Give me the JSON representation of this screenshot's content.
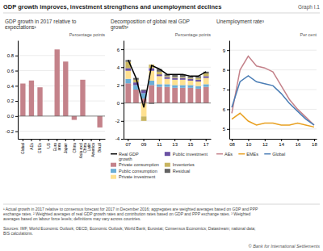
{
  "title": "GDP growth improves, investment strengthens and unemployment declines",
  "subtitle": "Graph I.1",
  "annotations": [
    "¹ Actual growth in 2017 relative to consensus forecast for 2017 in December 2016; aggregates are weighted averages based on GDP and PPP\nexchange rates.  ² Weighted averages of real GDP growth rates and contribution rates based on GDP and PPP exchange rates.  ³ Weighted\naverages based on labour force levels; definitions may vary across countries.\n\nSources: IMF, World Economic Outlook; OECD, Economic Outlook; World Bank; Eurostat; Consensus Economics; Datastream; national data;\nBIS calculations.",
    "© Bank for International Settlements"
  ],
  "chart_data": [
    {
      "type": "bar",
      "title": "GDP growth in 2017 relative to\nexpectations¹",
      "ylabel": "Percentage points",
      "categories": [
        "Global",
        "AEs",
        "EMEs",
        "US",
        "Euro\narea",
        "Japan",
        "China",
        "Asia excl\nChina",
        "Latin\nAmerica",
        "Brazil"
      ],
      "values": [
        0.43,
        0.47,
        0.38,
        0.0,
        0.88,
        0.72,
        -0.05,
        0.48,
        0.0,
        -0.15
      ],
      "color": "#c4828a",
      "ylim": [
        -0.3,
        1.0
      ],
      "yticks": [
        -0.2,
        {
          "value": 0.0,
          "label": "0.0"
        },
        0.2,
        0.4,
        0.6,
        0.8
      ],
      "grid": true
    },
    {
      "type": "bar",
      "stacked": true,
      "title": "Decomposition of global real GDP\ngrowth²",
      "ylabel": "Percentage points",
      "categories": [
        "07",
        null,
        "09",
        null,
        "11",
        null,
        "13",
        null,
        "15",
        null,
        "17"
      ],
      "series": [
        {
          "name": "Real GDP\ngrowth",
          "type": "line",
          "color": "black",
          "values": [
            4.8,
            2.8,
            -0.5,
            4.2,
            3.8,
            3.2,
            3.2,
            3.2,
            3.0,
            3.0,
            3.5
          ]
        },
        {
          "name": "Private consumption",
          "color": "#c4828a",
          "values": [
            2.2,
            1.5,
            0.5,
            2.0,
            1.8,
            1.8,
            1.7,
            1.7,
            1.7,
            1.6,
            1.8
          ]
        },
        {
          "name": "Public consumption",
          "color": "#6baed6",
          "values": [
            0.5,
            0.5,
            0.6,
            0.5,
            0.3,
            0.3,
            0.3,
            0.3,
            0.3,
            0.3,
            0.3
          ]
        },
        {
          "name": "Private investment",
          "color": "#fee090",
          "values": [
            0.9,
            0.0,
            -1.5,
            1.1,
            0.9,
            0.6,
            0.6,
            0.6,
            0.5,
            0.5,
            0.7
          ]
        },
        {
          "name": "Public investment",
          "color": "#6a51a3",
          "values": [
            0.3,
            0.3,
            0.3,
            0.3,
            0.2,
            0.2,
            0.2,
            0.2,
            0.2,
            0.2,
            0.2
          ]
        },
        {
          "name": "Inventories",
          "color": "#c8b560",
          "values": [
            0.7,
            0.3,
            -0.5,
            0.4,
            0.3,
            0.1,
            0.1,
            0.1,
            0.1,
            0.2,
            0.3
          ]
        },
        {
          "name": "Residual",
          "color": "#636363",
          "values": [
            0.2,
            0.2,
            0.1,
            -0.1,
            0.3,
            0.2,
            0.3,
            0.3,
            0.2,
            0.2,
            0.2
          ]
        }
      ],
      "ylim": [
        -4,
        7
      ],
      "yticks": [
        -4,
        -2,
        0,
        2,
        4,
        6
      ],
      "grid": true,
      "legend": "bottom"
    },
    {
      "type": "line",
      "title": "Unemployment rate³",
      "ylabel": "Per cent",
      "categories": [
        "08",
        null,
        "10",
        null,
        "12",
        null,
        "14",
        null,
        "16",
        null,
        "18"
      ],
      "series": [
        {
          "name": "AEs",
          "color": "#c4828a",
          "values": [
            5.8,
            8.0,
            8.7,
            8.2,
            8.1,
            7.9,
            7.2,
            6.5,
            6.0,
            5.6,
            5.2
          ]
        },
        {
          "name": "EMEs",
          "color": "#e8a020",
          "values": [
            5.5,
            5.8,
            5.4,
            5.2,
            5.3,
            5.3,
            5.2,
            5.2,
            5.3,
            5.2,
            5.1
          ]
        },
        {
          "name": "Global",
          "color": "#4a7db5",
          "values": [
            6.1,
            7.4,
            7.7,
            7.4,
            7.3,
            7.2,
            6.8,
            6.3,
            5.9,
            5.5,
            5.2
          ]
        }
      ],
      "ylim": [
        4.5,
        9.5
      ],
      "yticks": [
        5,
        6,
        7,
        8,
        9
      ],
      "grid": true,
      "legend": "bottom"
    }
  ]
}
